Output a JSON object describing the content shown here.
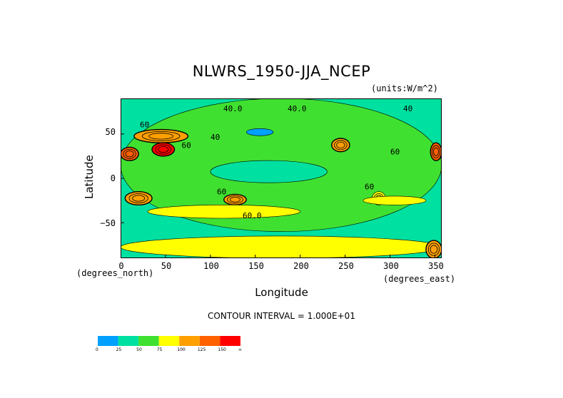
{
  "title": "NLWRS_1950-JJA_NCEP",
  "units": "(units:W/m^2)",
  "axes": {
    "ylabel": "Latitude",
    "xlabel": "Longitude",
    "y_sub": "(degrees_north)",
    "x_sub": "(degrees_east)",
    "yticks": [
      "50",
      "0",
      "−50"
    ],
    "xticks": [
      "0",
      "50",
      "100",
      "150",
      "200",
      "250",
      "300",
      "350"
    ]
  },
  "contour_text": "CONTOUR INTERVAL = 1.000E+01",
  "contour_labels": [
    "40.0",
    "40.0",
    "60",
    "60",
    "60",
    "60.0",
    "60",
    "40",
    "40",
    "60"
  ],
  "legend": {
    "colors": [
      "#00a0ff",
      "#00e0a0",
      "#40e030",
      "#ffff00",
      "#ffa000",
      "#ff6000",
      "#ff0000"
    ],
    "ticks": [
      "0",
      "25",
      "50",
      "75",
      "100",
      "125",
      "150",
      "∞"
    ]
  },
  "chart_data": {
    "type": "heatmap",
    "title": "NLWRS_1950-JJA_NCEP",
    "xlabel": "Longitude",
    "ylabel": "Latitude",
    "xlim": [
      0,
      357.5
    ],
    "ylim": [
      -90,
      90
    ],
    "color_bins": [
      0,
      25,
      50,
      75,
      100,
      125,
      150
    ],
    "contour_interval": 10,
    "background_value": 45,
    "regions": [
      {
        "lon": [
          0,
          357.5
        ],
        "lat": [
          -60,
          90
        ],
        "value": 55
      },
      {
        "lon": [
          100,
          230
        ],
        "lat": [
          -5,
          20
        ],
        "value": 35
      },
      {
        "lon": [
          140,
          170
        ],
        "lat": [
          48,
          56
        ],
        "value": 20
      },
      {
        "lon": [
          0,
          20
        ],
        "lat": [
          20,
          35
        ],
        "value": 140
      },
      {
        "lon": [
          35,
          60
        ],
        "lat": [
          25,
          40
        ],
        "value": 155
      },
      {
        "lon": [
          15,
          75
        ],
        "lat": [
          40,
          55
        ],
        "value": 115
      },
      {
        "lon": [
          235,
          255
        ],
        "lat": [
          30,
          45
        ],
        "value": 110
      },
      {
        "lon": [
          345,
          357.5
        ],
        "lat": [
          20,
          40
        ],
        "value": 125
      },
      {
        "lon": [
          5,
          35
        ],
        "lat": [
          -30,
          -15
        ],
        "value": 115
      },
      {
        "lon": [
          115,
          140
        ],
        "lat": [
          -30,
          -18
        ],
        "value": 105
      },
      {
        "lon": [
          280,
          295
        ],
        "lat": [
          -30,
          -15
        ],
        "value": 95
      },
      {
        "lon": [
          30,
          200
        ],
        "lat": [
          -45,
          -30
        ],
        "value": 80
      },
      {
        "lon": [
          270,
          340
        ],
        "lat": [
          -30,
          -20
        ],
        "value": 80
      },
      {
        "lon": [
          0,
          357.5
        ],
        "lat": [
          -90,
          -65
        ],
        "value": 85
      },
      {
        "lon": [
          340,
          357.5
        ],
        "lat": [
          -90,
          -70
        ],
        "value": 120
      }
    ]
  }
}
